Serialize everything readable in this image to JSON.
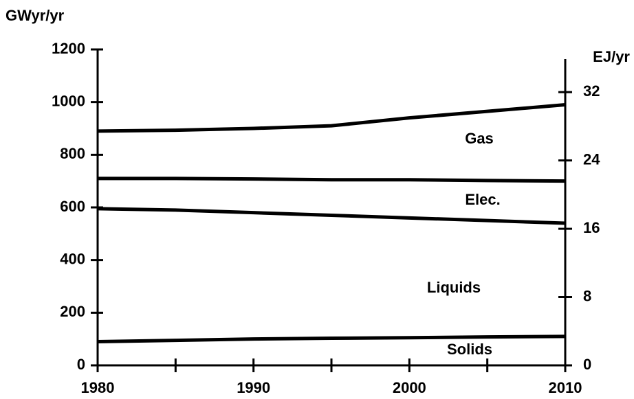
{
  "chart_data": {
    "type": "stacked_line",
    "ylabel": "GWyr/yr",
    "y2label": "EJ/yr",
    "x": [
      1980,
      1985,
      1990,
      1995,
      2000,
      2005,
      2010
    ],
    "series": [
      {
        "name": "Solids",
        "color": "#000000",
        "values": [
          90,
          95,
          100,
          103,
          105,
          108,
          110
        ]
      },
      {
        "name": "Liquids",
        "color": "#000000",
        "values": [
          505,
          495,
          480,
          467,
          455,
          442,
          430
        ]
      },
      {
        "name": "Elec.",
        "color": "#000000",
        "values": [
          115,
          120,
          128,
          135,
          145,
          152,
          160
        ]
      },
      {
        "name": "Gas",
        "color": "#000000",
        "values": [
          180,
          183,
          192,
          205,
          235,
          263,
          290
        ]
      }
    ],
    "xlim": [
      1980,
      2010
    ],
    "xticks": [
      1980,
      1990,
      2000,
      2010
    ],
    "xminor_ticks": [
      1985,
      1995,
      2005
    ],
    "ylim": [
      0,
      1200
    ],
    "yticks": [
      0,
      200,
      400,
      600,
      800,
      1000,
      1200
    ],
    "y2lim": [
      0,
      37
    ],
    "y2ticks": [
      0,
      8,
      16,
      24,
      32
    ],
    "grid": false
  }
}
